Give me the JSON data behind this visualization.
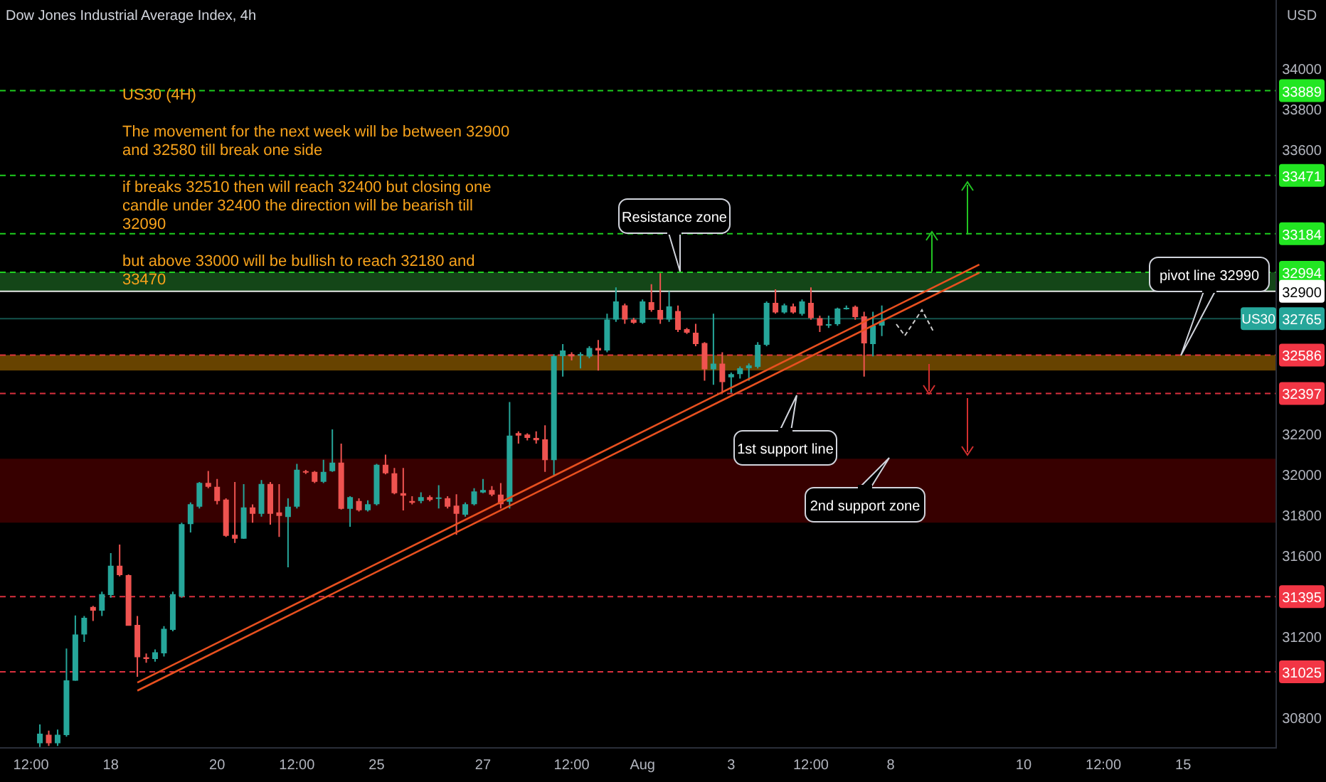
{
  "chart_data": {
    "type": "candlestick",
    "title": "Dow Jones Industrial Average Index, 4h",
    "ylabel": "USD",
    "ylim": [
      30650,
      34336
    ],
    "yticks": [
      30800,
      31200,
      31600,
      31800,
      32000,
      32200,
      33600,
      33800,
      34000
    ],
    "categories": [
      null,
      null,
      null,
      "12:00",
      null,
      null,
      null,
      null,
      null,
      null,
      null,
      null,
      "18",
      null,
      null,
      null,
      null,
      null,
      null,
      null,
      null,
      null,
      null,
      null,
      "20",
      null,
      null,
      null,
      null,
      null,
      null,
      null,
      null,
      "12:00",
      null,
      null,
      null,
      null,
      null,
      null,
      null,
      null,
      "25",
      null,
      null,
      null,
      null,
      null,
      null,
      null,
      null,
      null,
      null,
      null,
      "27",
      null,
      null,
      null,
      null,
      null,
      null,
      null,
      null,
      null,
      "12:00",
      null,
      null,
      null,
      null,
      null,
      null,
      null,
      "Aug",
      null,
      null,
      null,
      null,
      null,
      null,
      null,
      null,
      null,
      "3",
      null,
      null,
      null,
      null,
      null,
      null,
      null,
      null,
      "12:00",
      null,
      null,
      null,
      null,
      null,
      null,
      null,
      null,
      "8",
      null,
      null,
      null,
      null,
      null,
      null,
      null,
      null,
      null,
      null,
      null,
      null,
      null,
      null,
      "10",
      null,
      null,
      null,
      null,
      null,
      null,
      null,
      null,
      "12:00",
      null,
      null,
      null,
      null,
      null,
      null,
      null,
      null,
      "15",
      null,
      null,
      null,
      null,
      null,
      null,
      null,
      null,
      null,
      null
    ],
    "ohlc": [
      null,
      null,
      null,
      null,
      [
        30673,
        30766,
        30654,
        30720
      ],
      [
        30715,
        30735,
        30660,
        30673
      ],
      [
        30673,
        30740,
        30660,
        30715
      ],
      [
        30713,
        31140,
        30705,
        30983
      ],
      [
        30981,
        31303,
        30980,
        31209
      ],
      [
        31209,
        31300,
        31172,
        31291
      ],
      [
        31345,
        31350,
        31275,
        31326
      ],
      [
        31326,
        31420,
        31300,
        31408
      ],
      [
        31403,
        31610,
        31390,
        31548
      ],
      [
        31548,
        31652,
        31495,
        31501
      ],
      [
        31501,
        31505,
        31252,
        31252
      ],
      [
        31256,
        31300,
        31000,
        31097
      ],
      [
        31097,
        31115,
        31070,
        31088
      ],
      [
        31088,
        31135,
        31075,
        31121
      ],
      [
        31116,
        31250,
        31100,
        31237
      ],
      [
        31232,
        31420,
        31225,
        31408
      ],
      [
        31396,
        31760,
        31390,
        31753
      ],
      [
        31753,
        31860,
        31712,
        31851
      ],
      [
        31839,
        31960,
        31830,
        31956
      ],
      [
        31956,
        32015,
        31930,
        31937
      ],
      [
        31937,
        31975,
        31850,
        31867
      ],
      [
        31874,
        31880,
        31690,
        31695
      ],
      [
        31700,
        31960,
        31660,
        31681
      ],
      [
        31681,
        31950,
        31680,
        31835
      ],
      [
        31835,
        31850,
        31760,
        31804
      ],
      [
        31804,
        31970,
        31790,
        31951
      ],
      [
        31951,
        31960,
        31750,
        31804
      ],
      [
        31811,
        31950,
        31690,
        31793
      ],
      [
        31788,
        31880,
        31540,
        31839
      ],
      [
        31839,
        32050,
        31830,
        32021
      ],
      [
        32014,
        32020,
        32000,
        32007
      ],
      [
        32010,
        32015,
        31955,
        31961
      ],
      [
        31961,
        32070,
        31955,
        32010
      ],
      [
        32014,
        32220,
        32010,
        32056
      ],
      [
        32056,
        32150,
        31825,
        31828
      ],
      [
        31828,
        31890,
        31740,
        31886
      ],
      [
        31867,
        31880,
        31815,
        31821
      ],
      [
        31821,
        31870,
        31815,
        31851
      ],
      [
        31851,
        32050,
        31845,
        32045
      ],
      [
        32045,
        32095,
        31998,
        32003
      ],
      [
        32003,
        32030,
        31900,
        31905
      ],
      [
        31905,
        32030,
        31820,
        31893
      ],
      [
        31867,
        31890,
        31850,
        31858
      ],
      [
        31867,
        31910,
        31855,
        31886
      ],
      [
        31886,
        31895,
        31865,
        31872
      ],
      [
        31879,
        31945,
        31830,
        31884
      ],
      [
        31881,
        31890,
        31830,
        31839
      ],
      [
        31844,
        31900,
        31700,
        31804
      ],
      [
        31799,
        31860,
        31790,
        31851
      ],
      [
        31851,
        31930,
        31845,
        31914
      ],
      [
        31909,
        31975,
        31905,
        31921
      ],
      [
        31921,
        31940,
        31890,
        31898
      ],
      [
        31898,
        31955,
        31830,
        31851
      ],
      [
        31863,
        32355,
        31830,
        32189
      ],
      [
        32201,
        32210,
        32150,
        32189
      ],
      [
        32194,
        32200,
        32165,
        32178
      ],
      [
        32178,
        32210,
        32150,
        32166
      ],
      [
        32171,
        32240,
        32010,
        32068
      ],
      [
        32068,
        32590,
        31990,
        32581
      ],
      [
        32581,
        32640,
        32480,
        32609
      ],
      [
        32590,
        32600,
        32560,
        32580
      ],
      [
        32585,
        32600,
        32520,
        32590
      ],
      [
        32579,
        32630,
        32570,
        32621
      ],
      [
        32621,
        32660,
        32510,
        32609
      ],
      [
        32609,
        32790,
        32600,
        32761
      ],
      [
        32761,
        32920,
        32750,
        32850
      ],
      [
        32831,
        32840,
        32740,
        32761
      ],
      [
        32761,
        32770,
        32740,
        32745
      ],
      [
        32745,
        32860,
        32740,
        32850
      ],
      [
        32847,
        32935,
        32800,
        32808
      ],
      [
        32808,
        32990,
        32740,
        32761
      ],
      [
        32761,
        32900,
        32750,
        32826
      ],
      [
        32803,
        32830,
        32700,
        32710
      ],
      [
        32714,
        32720,
        32690,
        32696
      ],
      [
        32696,
        32740,
        32630,
        32640
      ],
      [
        32645,
        32650,
        32460,
        32516
      ],
      [
        32516,
        32790,
        32440,
        32544
      ],
      [
        32544,
        32600,
        32400,
        32453
      ],
      [
        32476,
        32500,
        32400,
        32492
      ],
      [
        32492,
        32530,
        32470,
        32521
      ],
      [
        32521,
        32545,
        32460,
        32535
      ],
      [
        32528,
        32650,
        32520,
        32637
      ],
      [
        32637,
        32850,
        32630,
        32843
      ],
      [
        32843,
        32910,
        32790,
        32796
      ],
      [
        32796,
        32840,
        32790,
        32831
      ],
      [
        32826,
        32840,
        32790,
        32796
      ],
      [
        32789,
        32860,
        32780,
        32850
      ],
      [
        32843,
        32920,
        32760,
        32768
      ],
      [
        32768,
        32780,
        32700,
        32731
      ],
      [
        32731,
        32780,
        32720,
        32738
      ],
      [
        32738,
        32820,
        32730,
        32815
      ],
      [
        32815,
        32830,
        32810,
        32819
      ],
      [
        32824,
        32830,
        32760,
        32773
      ],
      [
        32777,
        32800,
        32480,
        32644
      ],
      [
        32640,
        32800,
        32580,
        32731
      ],
      [
        32731,
        32830,
        32680,
        32754
      ],
      null,
      null,
      null,
      null,
      null,
      null,
      null,
      null,
      null,
      null,
      null,
      null,
      null,
      null,
      null,
      null,
      null,
      null,
      null,
      null,
      null,
      null,
      null,
      null,
      null,
      null,
      null,
      null,
      null,
      null,
      null,
      null,
      null,
      null,
      null,
      null,
      null,
      null,
      null,
      null,
      null,
      null,
      null,
      null
    ],
    "series": [
      {
        "type": "line",
        "color": "#e8501f",
        "values": [
          null,
          null,
          null,
          null,
          null,
          null,
          null,
          null,
          null,
          null,
          null,
          null,
          null,
          null,
          null,
          30972,
          null,
          null,
          null,
          null,
          null,
          null,
          null,
          null,
          null,
          null,
          null,
          null,
          null,
          null,
          null,
          null,
          null,
          null,
          null,
          null,
          null,
          null,
          null,
          null,
          null,
          null,
          null,
          null,
          null,
          null,
          null,
          null,
          null,
          null,
          null,
          null,
          null,
          null,
          null,
          null,
          null,
          null,
          null,
          null,
          null,
          null,
          null,
          null,
          null,
          null,
          null,
          null,
          null,
          null,
          null,
          null,
          null,
          null,
          null,
          null,
          null,
          null,
          null,
          null,
          null,
          null,
          null,
          null,
          null,
          null,
          null,
          null,
          null,
          null,
          null,
          null,
          null,
          null,
          null,
          null,
          null,
          null,
          null,
          null,
          null,
          null,
          null,
          null,
          null,
          null,
          null,
          null,
          null,
          null,
          33032,
          null,
          null,
          null,
          null,
          null,
          null,
          null,
          null,
          null,
          null,
          null,
          null,
          null,
          null,
          null,
          null,
          null,
          null,
          null,
          null,
          null,
          null,
          null,
          null,
          null,
          null,
          null,
          null,
          null,
          null,
          null,
          null,
          null
        ]
      },
      {
        "type": "line",
        "color": "#e8501f",
        "values": [
          null,
          null,
          null,
          null,
          null,
          null,
          null,
          null,
          null,
          null,
          null,
          null,
          null,
          null,
          null,
          30932,
          null,
          null,
          null,
          null,
          null,
          null,
          null,
          null,
          null,
          null,
          null,
          null,
          null,
          null,
          null,
          null,
          null,
          null,
          null,
          null,
          null,
          null,
          null,
          null,
          null,
          null,
          null,
          null,
          null,
          null,
          null,
          null,
          null,
          null,
          null,
          null,
          null,
          null,
          null,
          null,
          null,
          null,
          null,
          null,
          null,
          null,
          null,
          null,
          null,
          null,
          null,
          null,
          null,
          null,
          null,
          null,
          null,
          null,
          null,
          null,
          null,
          null,
          null,
          null,
          null,
          null,
          null,
          null,
          null,
          null,
          null,
          null,
          null,
          null,
          null,
          null,
          null,
          null,
          null,
          null,
          null,
          null,
          null,
          null,
          null,
          null,
          null,
          null,
          null,
          null,
          null,
          null,
          null,
          null,
          32992,
          null,
          null,
          null,
          null,
          null,
          null,
          null,
          null,
          null,
          null,
          null,
          null,
          null,
          null,
          null,
          null,
          null,
          null,
          null,
          null,
          null,
          null,
          null,
          null,
          null,
          null,
          null,
          null,
          null,
          null,
          null,
          null,
          null
        ]
      }
    ],
    "ref_lines": [
      {
        "axis": "y",
        "value": 33889,
        "label": "33889",
        "color": "#22e622",
        "line_style": "dashed"
      },
      {
        "axis": "y",
        "value": 33471,
        "label": "33471",
        "color": "#22e622",
        "line_style": "dashed"
      },
      {
        "axis": "y",
        "value": 33184,
        "label": "33184",
        "color": "#22e622",
        "line_style": "dashed"
      },
      {
        "axis": "y",
        "value": 32994,
        "label": "32994",
        "color": "#22e622",
        "line_style": "dashed"
      },
      {
        "axis": "y",
        "value": 32900,
        "label": "32900",
        "color": "#ffffff",
        "line_style": "solid"
      },
      {
        "axis": "y",
        "value": 32765,
        "label": "32765",
        "color": "#26a69a",
        "line_style": "solid"
      },
      {
        "axis": "y",
        "value": 32586,
        "label": "32586",
        "color": "#f23645",
        "line_style": "dashed"
      },
      {
        "axis": "y",
        "value": 32397,
        "label": "32397",
        "color": "#f23645",
        "line_style": "dashed"
      },
      {
        "axis": "y",
        "value": 31395,
        "label": "31395",
        "color": "#f23645",
        "line_style": "dashed"
      },
      {
        "axis": "y",
        "value": 31025,
        "label": "31025",
        "color": "#f23645",
        "line_style": "dashed"
      }
    ],
    "bands": [
      {
        "axis": "y",
        "from": 32900,
        "to": 32994,
        "color": "#1b5e20"
      },
      {
        "axis": "y",
        "from": 32510,
        "to": 32586,
        "color": "#8a5a00"
      },
      {
        "axis": "y",
        "from": 31760,
        "to": 32075,
        "color": "#4a0000"
      }
    ],
    "annotations": [
      "US30 (4H)",
      "The movement for the next week will be between 32900 and 32580 till break one side",
      "if breaks 32510 then will reach 32400 but closing one candle under 32400 the direction will be bearish till 32090",
      "but above 33000 will be bullish to reach 32180 and 33470",
      "Resistance zone",
      "1st support line",
      "2nd support zone",
      "pivot line 32990",
      "US30"
    ]
  }
}
